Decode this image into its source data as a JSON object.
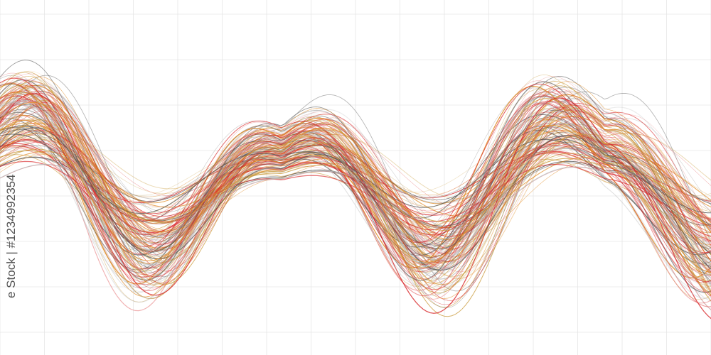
{
  "watermark": "e Stock | #1234992354",
  "colors": {
    "red": "#d8282a",
    "orange": "#e08a22",
    "gold": "#c99a3a",
    "gray": "#5a5a5a",
    "light_gray": "#bbbbbb",
    "grid": "#e6e6e6",
    "background": "#ffffff"
  }
}
